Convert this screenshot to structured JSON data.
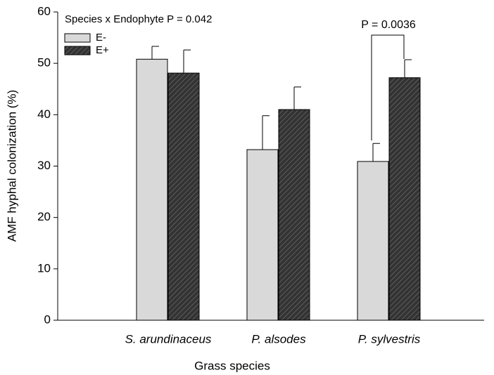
{
  "chart_data": {
    "type": "bar",
    "xlabel": "Grass species",
    "ylabel": "AMF hyphal colonization (%)",
    "annotations": [
      "Species x Endophyte P = 0.042",
      "P = 0.0036"
    ],
    "categories": [
      "S. arundinaceus",
      "P. alsodes",
      "P. sylvestris"
    ],
    "series": [
      {
        "name": "E-",
        "color": "#d9d9d9",
        "values": [
          50.8,
          33.2,
          30.9
        ],
        "errors": [
          2.5,
          6.6,
          3.5
        ]
      },
      {
        "name": "E+",
        "color": "#333333",
        "hatch": true,
        "values": [
          48.1,
          41.0,
          47.2
        ],
        "errors": [
          4.5,
          4.4,
          3.5
        ]
      }
    ],
    "ylim": [
      0,
      60
    ],
    "yticks": [
      0,
      10,
      20,
      30,
      40,
      50,
      60
    ],
    "legend": "upper left"
  }
}
